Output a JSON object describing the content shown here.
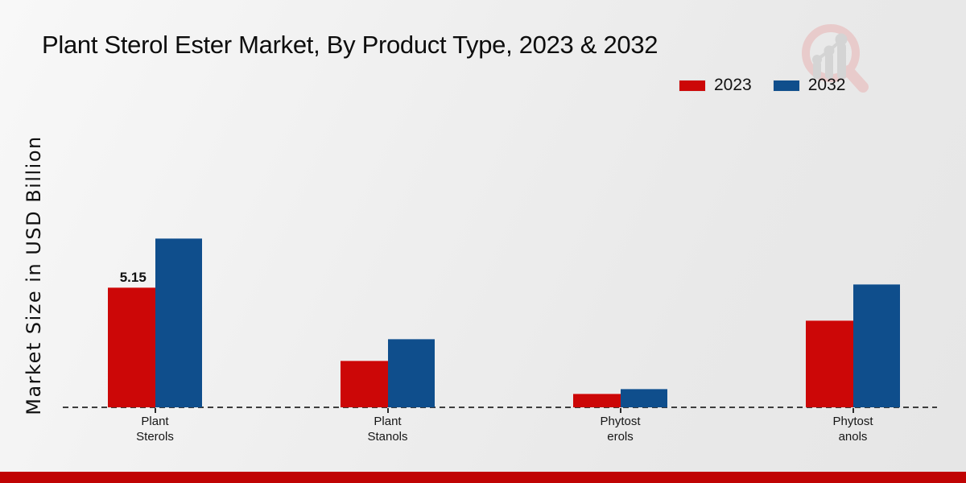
{
  "title": "Plant Sterol Ester Market, By Product Type, 2023 & 2032",
  "ylabel": "Market Size in USD Billion",
  "legend": {
    "items": [
      {
        "label": "2023",
        "color": "#cc0707"
      },
      {
        "label": "2032",
        "color": "#0f4e8c"
      }
    ]
  },
  "colors": {
    "series_2023": "#cc0707",
    "series_2032": "#0f4e8c",
    "baseline": "#3d3d3d",
    "bottom_strip": "#c00404",
    "watermark_pink": "#e8caca",
    "watermark_gray": "#d3d3d3"
  },
  "chart_data": {
    "type": "bar",
    "title": "Plant Sterol Ester Market, By Product Type, 2023 & 2032",
    "ylabel": "Market Size in USD Billion",
    "xlabel": "",
    "categories": [
      "Plant Sterols",
      "Plant Stanols",
      "Phytosterols",
      "Phytostanols"
    ],
    "category_labels_wrapped": [
      [
        "Plant",
        "Sterols"
      ],
      [
        "Plant",
        "Stanols"
      ],
      [
        "Phytost",
        "erols"
      ],
      [
        "Phytost",
        "anols"
      ]
    ],
    "series": [
      {
        "name": "2023",
        "color": "#cc0707",
        "values": [
          5.15,
          2.0,
          0.6,
          3.75
        ]
      },
      {
        "name": "2032",
        "color": "#0f4e8c",
        "values": [
          7.27,
          2.93,
          0.78,
          5.32
        ]
      }
    ],
    "value_labels": [
      {
        "series_index": 0,
        "category_index": 0,
        "text": "5.15"
      }
    ],
    "ylim": [
      0,
      7.5
    ],
    "grid": false,
    "legend_position": "top-right",
    "baseline_style": "dashed"
  }
}
